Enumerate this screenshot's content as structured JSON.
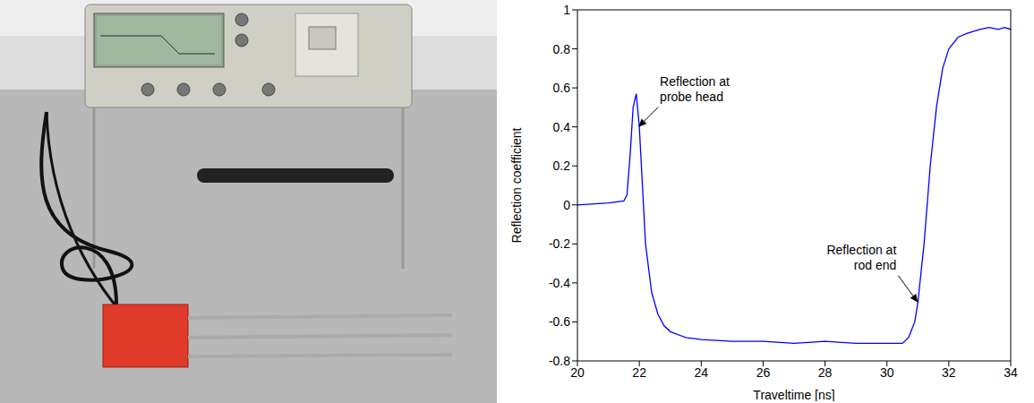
{
  "chart_data": {
    "type": "line",
    "x_label": "Traveltime [ns]",
    "y_label": "Reflection coefficient",
    "color": "#0000ff",
    "grid": false,
    "xlim": [
      20,
      34
    ],
    "xticks": [
      20,
      22,
      24,
      26,
      28,
      30,
      32,
      34
    ],
    "ylim": [
      -0.8,
      1
    ],
    "yticks": [
      -0.8,
      -0.6,
      -0.4,
      -0.2,
      0,
      0.2,
      0.4,
      0.6,
      0.8,
      1
    ],
    "x": [
      20,
      21,
      21.5,
      21.6,
      21.7,
      21.8,
      21.9,
      22.0,
      22.1,
      22.2,
      22.4,
      22.6,
      22.8,
      23,
      23.5,
      24,
      25,
      26,
      27,
      28,
      29,
      30,
      30.5,
      30.7,
      30.9,
      31.0,
      31.2,
      31.4,
      31.6,
      31.8,
      32,
      32.3,
      32.6,
      33,
      33.3,
      33.6,
      33.8,
      34
    ],
    "values": [
      0.0,
      0.01,
      0.02,
      0.05,
      0.25,
      0.5,
      0.57,
      0.4,
      0.1,
      -0.2,
      -0.45,
      -0.56,
      -0.62,
      -0.65,
      -0.68,
      -0.69,
      -0.7,
      -0.7,
      -0.71,
      -0.7,
      -0.71,
      -0.71,
      -0.71,
      -0.68,
      -0.6,
      -0.5,
      -0.2,
      0.2,
      0.5,
      0.7,
      0.8,
      0.86,
      0.88,
      0.9,
      0.91,
      0.9,
      0.91,
      0.9
    ],
    "annotations": [
      {
        "text": "Reflection at probe head",
        "x": 21.97,
        "y": 0.4
      },
      {
        "text": "Reflection at rod end",
        "x": 31.0,
        "y": -0.5
      }
    ]
  }
}
